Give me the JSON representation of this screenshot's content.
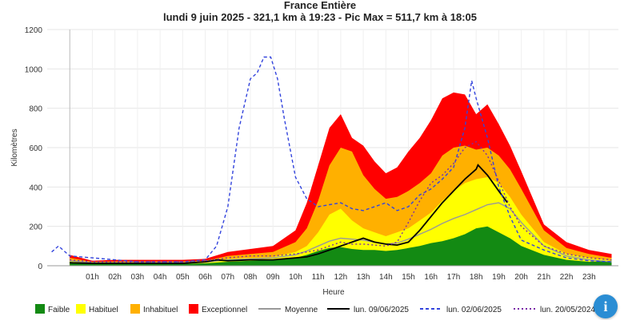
{
  "chart_data": {
    "type": "area",
    "title": "France Entière",
    "subtitle": "lundi 9 juin 2025 - 321,1 km à 19:23 - Pic Max = 511,7 km à 18:05",
    "xlabel": "Heure",
    "ylabel": "Kilomètres",
    "xlim": [
      -1,
      24.3
    ],
    "ylim": [
      0,
      1200
    ],
    "x_ticks": [
      1,
      2,
      3,
      4,
      5,
      6,
      7,
      8,
      9,
      10,
      11,
      12,
      13,
      14,
      15,
      16,
      17,
      18,
      19,
      20,
      21,
      22,
      23
    ],
    "x_tick_labels": [
      "01h",
      "02h",
      "03h",
      "04h",
      "05h",
      "06h",
      "07h",
      "08h",
      "09h",
      "10h",
      "11h",
      "12h",
      "13h",
      "14h",
      "15h",
      "16h",
      "17h",
      "18h",
      "19h",
      "20h",
      "21h",
      "22h",
      "23h"
    ],
    "y_ticks": [
      0,
      200,
      400,
      600,
      800,
      1000,
      1200
    ],
    "y_tick_labels": [
      "0",
      "200",
      "400",
      "600",
      "800",
      "1000",
      "1200"
    ],
    "grid": true,
    "legend_position": "bottom",
    "stacked_areas": [
      {
        "name": "Exceptionnel",
        "color": "#ff0000",
        "x": [
          0,
          1,
          2,
          3,
          4,
          5,
          6,
          7,
          8,
          9,
          10,
          10.5,
          11,
          11.5,
          12,
          12.5,
          13,
          13.5,
          14,
          14.5,
          15,
          15.5,
          16,
          16.5,
          17,
          17.5,
          18,
          18.5,
          19,
          19.5,
          20,
          21,
          22,
          23,
          24
        ],
        "y": [
          55,
          25,
          30,
          30,
          30,
          30,
          35,
          70,
          85,
          100,
          180,
          320,
          510,
          700,
          770,
          650,
          610,
          530,
          470,
          500,
          580,
          650,
          740,
          850,
          880,
          870,
          770,
          820,
          720,
          610,
          480,
          210,
          120,
          80,
          60
        ]
      },
      {
        "name": "Inhabituel",
        "color": "#ffb000",
        "x": [
          0,
          1,
          2,
          3,
          4,
          5,
          6,
          7,
          8,
          9,
          10,
          10.5,
          11,
          11.5,
          12,
          12.5,
          13,
          13.5,
          14,
          14.5,
          15,
          15.5,
          16,
          16.5,
          17,
          17.5,
          18,
          18.5,
          19,
          19.5,
          20,
          21,
          22,
          23,
          24
        ],
        "y": [
          40,
          20,
          22,
          22,
          22,
          22,
          25,
          50,
          60,
          70,
          120,
          190,
          330,
          510,
          600,
          580,
          460,
          390,
          340,
          350,
          380,
          420,
          470,
          560,
          600,
          610,
          590,
          600,
          560,
          490,
          390,
          180,
          90,
          60,
          40
        ]
      },
      {
        "name": "Habituel",
        "color": "#ffff00",
        "x": [
          0,
          1,
          2,
          3,
          4,
          5,
          6,
          7,
          8,
          9,
          10,
          10.5,
          11,
          11.5,
          12,
          12.5,
          13,
          13.5,
          14,
          14.5,
          15,
          15.5,
          16,
          16.5,
          17,
          17.5,
          18,
          18.5,
          19,
          19.5,
          20,
          21,
          22,
          23,
          24
        ],
        "y": [
          25,
          15,
          15,
          15,
          15,
          15,
          18,
          35,
          40,
          45,
          70,
          100,
          170,
          260,
          290,
          230,
          190,
          170,
          150,
          170,
          190,
          230,
          270,
          330,
          380,
          420,
          440,
          450,
          420,
          350,
          260,
          120,
          60,
          40,
          25
        ]
      },
      {
        "name": "Faible",
        "color": "#138a13",
        "x": [
          0,
          1,
          2,
          3,
          4,
          5,
          6,
          7,
          8,
          9,
          10,
          10.5,
          11,
          11.5,
          12,
          12.5,
          13,
          13.5,
          14,
          14.5,
          15,
          15.5,
          16,
          16.5,
          17,
          17.5,
          18,
          18.5,
          19,
          19.5,
          20,
          21,
          22,
          23,
          24
        ],
        "y": [
          20,
          10,
          10,
          10,
          10,
          10,
          12,
          20,
          25,
          28,
          40,
          55,
          75,
          90,
          95,
          85,
          80,
          80,
          75,
          80,
          90,
          100,
          115,
          125,
          140,
          160,
          190,
          200,
          170,
          140,
          100,
          55,
          30,
          20,
          25
        ]
      }
    ],
    "series": [
      {
        "name": "Moyenne",
        "color": "#999999",
        "style": "solid",
        "x": [
          0,
          1,
          2,
          3,
          4,
          5,
          6,
          7,
          8,
          9,
          10,
          10.5,
          11,
          11.5,
          12,
          12.5,
          13,
          13.5,
          14,
          14.5,
          15,
          15.5,
          16,
          16.5,
          17,
          17.5,
          18,
          18.5,
          19,
          19.5,
          20,
          21,
          22,
          23,
          24
        ],
        "y": [
          25,
          15,
          15,
          15,
          15,
          15,
          18,
          30,
          35,
          40,
          55,
          75,
          100,
          125,
          140,
          135,
          130,
          120,
          110,
          115,
          135,
          160,
          185,
          215,
          240,
          260,
          285,
          310,
          320,
          290,
          220,
          100,
          50,
          30,
          20
        ]
      },
      {
        "name": "lun. 09/06/2025",
        "color": "#000000",
        "style": "solid",
        "x": [
          0,
          1,
          2,
          3,
          4,
          5,
          6,
          6.5,
          7,
          8,
          9,
          10,
          10.5,
          11,
          11.5,
          12,
          12.5,
          13,
          13.5,
          14,
          14.5,
          15,
          15.5,
          16,
          16.5,
          17,
          17.5,
          18,
          18.08,
          18.5,
          19,
          19.38
        ],
        "y": [
          15,
          12,
          12,
          12,
          12,
          12,
          20,
          30,
          25,
          30,
          30,
          40,
          45,
          60,
          80,
          100,
          120,
          140,
          120,
          110,
          105,
          120,
          180,
          250,
          320,
          380,
          440,
          490,
          511.7,
          460,
          380,
          321.1
        ]
      },
      {
        "name": "lun. 02/06/2025",
        "color": "#3344dd",
        "style": "dashed",
        "x": [
          -0.8,
          -0.5,
          0,
          1,
          2,
          3,
          4,
          5,
          6,
          6.5,
          7,
          7.5,
          8,
          8.3,
          8.6,
          8.9,
          9.2,
          9.5,
          10,
          10.5,
          11,
          11.5,
          12,
          12.5,
          13,
          13.5,
          14,
          14.5,
          15,
          15.5,
          16,
          16.5,
          17,
          17.5,
          17.8,
          18,
          18.5,
          19,
          19.5,
          20,
          21,
          22,
          23,
          24
        ],
        "y": [
          70,
          100,
          50,
          40,
          30,
          20,
          20,
          20,
          30,
          100,
          300,
          700,
          950,
          980,
          1060,
          1060,
          950,
          750,
          450,
          340,
          300,
          310,
          320,
          290,
          280,
          300,
          320,
          280,
          300,
          360,
          390,
          440,
          500,
          700,
          940,
          850,
          650,
          400,
          250,
          130,
          80,
          40,
          25,
          20
        ]
      },
      {
        "name": "lun. 20/05/2024",
        "color": "#7a2aa8",
        "style": "dotted",
        "x": [
          0,
          1,
          2,
          3,
          4,
          5,
          6,
          7,
          8,
          9,
          10,
          11,
          11.5,
          12,
          12.5,
          13,
          13.5,
          14,
          14.5,
          15,
          15.5,
          16,
          16.5,
          17,
          17.5,
          18,
          18.5,
          19,
          19.5,
          20,
          21,
          22,
          23,
          24
        ],
        "y": [
          30,
          20,
          20,
          20,
          20,
          20,
          25,
          40,
          50,
          50,
          60,
          80,
          100,
          120,
          110,
          110,
          105,
          100,
          120,
          220,
          330,
          420,
          460,
          520,
          600,
          630,
          560,
          430,
          300,
          200,
          100,
          60,
          40,
          30
        ]
      }
    ]
  },
  "legend": [
    {
      "label": "Faible",
      "kind": "box",
      "color": "#138a13"
    },
    {
      "label": "Habituel",
      "kind": "box",
      "color": "#ffff00"
    },
    {
      "label": "Inhabituel",
      "kind": "box",
      "color": "#ffb000"
    },
    {
      "label": "Exceptionnel",
      "kind": "box",
      "color": "#ff0000"
    },
    {
      "label": "Moyenne",
      "kind": "line",
      "color": "#999999",
      "style": "solid"
    },
    {
      "label": "lun. 09/06/2025",
      "kind": "line",
      "color": "#000000",
      "style": "solid"
    },
    {
      "label": "lun. 02/06/2025",
      "kind": "line",
      "color": "#3344dd",
      "style": "dashed"
    },
    {
      "label": "lun. 20/05/2024",
      "kind": "line",
      "color": "#7a2aa8",
      "style": "dotted"
    }
  ],
  "info_button": {
    "label": "i",
    "color": "#2a8dd4",
    "icon": "info-icon"
  }
}
